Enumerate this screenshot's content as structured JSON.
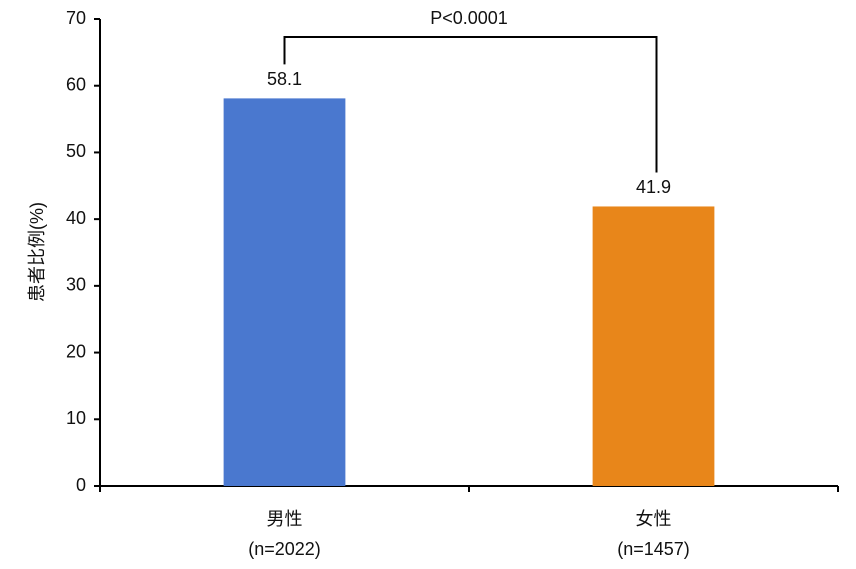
{
  "chart_data": {
    "type": "bar",
    "y_label": "患者比例(%)",
    "categories": [
      "男性",
      "女性"
    ],
    "category_sublabels": [
      "(n=2022)",
      "(n=1457)"
    ],
    "values": [
      58.1,
      41.9
    ],
    "colors": [
      "#4a78cf",
      "#e8861a"
    ],
    "ylim": [
      0,
      70
    ],
    "yticks": [
      0,
      10,
      20,
      30,
      40,
      50,
      60,
      70
    ],
    "grid": false,
    "annotation": "P<0.0001"
  }
}
